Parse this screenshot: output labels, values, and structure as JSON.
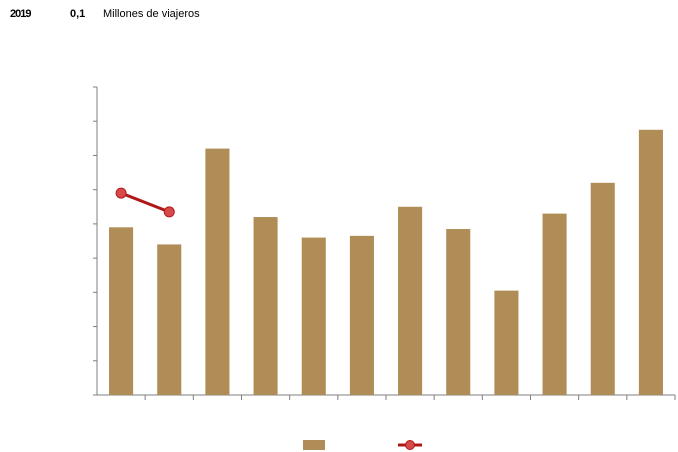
{
  "header": {
    "left_fragment": "2019",
    "mid_fragment": "0,1",
    "unit_label": "Millones  de viajeros"
  },
  "colors": {
    "bar": "#b08d57",
    "line": "#b01818",
    "marker_fill": "#d84a4a",
    "axis": "#7f7f7f"
  },
  "chart_data": {
    "type": "bar",
    "categories": [
      "",
      "",
      "",
      "",
      "",
      "",
      "",
      "",
      "",
      "",
      "",
      ""
    ],
    "series": [
      {
        "type": "bar",
        "values": [
          4.9,
          4.4,
          7.2,
          5.2,
          4.6,
          4.65,
          5.5,
          4.85,
          3.05,
          5.3,
          6.2,
          7.75
        ]
      },
      {
        "type": "line",
        "values": [
          5.9,
          5.35,
          null,
          null,
          null,
          null,
          null,
          null,
          null,
          null,
          null,
          null
        ]
      }
    ],
    "ylim": [
      0,
      9
    ],
    "yticks": 9,
    "grid": false,
    "legend": "bottom-center"
  }
}
